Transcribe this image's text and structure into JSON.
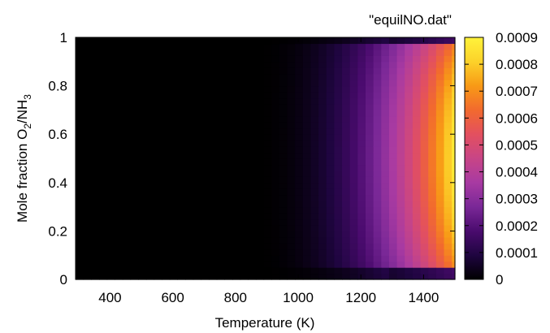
{
  "chart_data": {
    "type": "heatmap",
    "title": "",
    "legend_label": "\"equilNO.dat\"",
    "xlabel": "Temperature (K)",
    "ylabel_parts": [
      "Mole fraction O",
      "2",
      "/NH",
      "3"
    ],
    "xlim": [
      290,
      1500
    ],
    "ylim": [
      0,
      1
    ],
    "x_ticks": [
      400,
      600,
      800,
      1000,
      1200,
      1400
    ],
    "x_tick_labels": [
      "400",
      "600",
      "800",
      "1000",
      "1200",
      "1400"
    ],
    "y_ticks": [
      0,
      0.2,
      0.4,
      0.6,
      0.8,
      1
    ],
    "y_tick_labels": [
      "0",
      "0.2",
      "0.4",
      "0.6",
      "0.8",
      "1"
    ],
    "colorbar_range": [
      0,
      0.0009
    ],
    "colorbar_ticks": [
      0,
      0.0001,
      0.0002,
      0.0003,
      0.0004,
      0.0005,
      0.0006,
      0.0007,
      0.0008,
      0.0009
    ],
    "colorbar_tick_labels": [
      "0",
      "0.0001",
      "0.0002",
      "0.0003",
      "0.0004",
      "0.0005",
      "0.0006",
      "0.0007",
      "0.0008",
      "0.0009"
    ],
    "colormap": [
      "#000000",
      "#1f0540",
      "#4a0b6e",
      "#7a2897",
      "#a83aa2",
      "#c84586",
      "#e3505f",
      "#f26a2e",
      "#f89a16",
      "#fcd22a",
      "#fff33b"
    ],
    "model": {
      "description_value_max": 0.00087,
      "x_grid": [
        300,
        1500,
        25
      ],
      "y_grid": [
        0,
        1,
        0.025
      ],
      "peak_y": 0.5,
      "value_at_edge_1500": 0.00087
    },
    "grid": false,
    "legend_placement": "top-right"
  }
}
